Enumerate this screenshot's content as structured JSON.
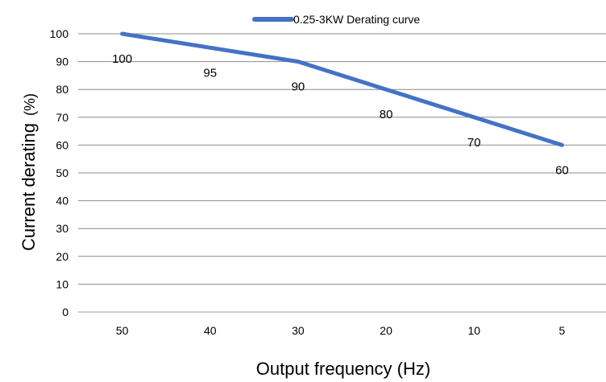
{
  "chart_data": {
    "type": "line",
    "title": "",
    "xlabel": "Output frequency (Hz)",
    "ylabel": {
      "main": "Current derating",
      "unit": "(%)"
    },
    "categories": [
      "50",
      "40",
      "30",
      "20",
      "10",
      "5"
    ],
    "series": [
      {
        "name": "0.25-3KW Derating curve",
        "values": [
          100,
          95,
          90,
          80,
          70,
          60
        ],
        "labels": [
          "100",
          "95",
          "90",
          "80",
          "70",
          "60"
        ],
        "color": "#4472C4"
      }
    ],
    "ylim": [
      0,
      100
    ],
    "yticks": [
      0,
      10,
      20,
      30,
      40,
      50,
      60,
      70,
      80,
      90,
      100
    ],
    "yticks_text": [
      "0",
      "10",
      "20",
      "30",
      "40",
      "50",
      "60",
      "70",
      "80",
      "90",
      "100"
    ],
    "grid": true,
    "legend_position": "top"
  }
}
